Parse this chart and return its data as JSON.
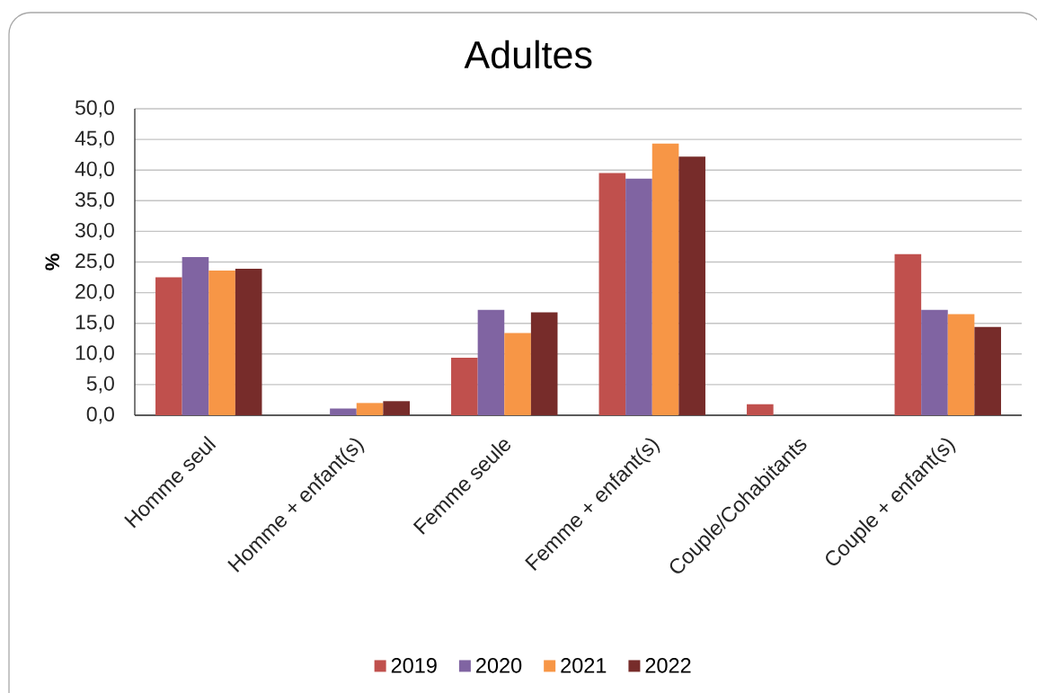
{
  "chart_data": {
    "type": "bar",
    "title": "Adultes",
    "ylabel": "%",
    "categories": [
      "Homme seul",
      "Homme + enfant(s)",
      "Femme seule",
      "Femme + enfant(s)",
      "Couple/Cohabitants",
      "Couple + enfant(s)"
    ],
    "series": [
      {
        "name": "2019",
        "color": "#c0504d",
        "values": [
          22.5,
          null,
          9.4,
          39.5,
          1.8,
          26.3
        ]
      },
      {
        "name": "2020",
        "color": "#8064a2",
        "values": [
          25.8,
          1.1,
          17.2,
          38.6,
          null,
          17.2
        ]
      },
      {
        "name": "2021",
        "color": "#f79646",
        "values": [
          23.6,
          2.0,
          13.4,
          44.3,
          null,
          16.5
        ]
      },
      {
        "name": "2022",
        "color": "#772c2a",
        "values": [
          23.9,
          2.3,
          16.8,
          42.2,
          null,
          14.4
        ]
      }
    ],
    "ylim": [
      0,
      50
    ],
    "yticks": [
      {
        "value": 0,
        "label": "0,0"
      },
      {
        "value": 5,
        "label": "5,0"
      },
      {
        "value": 10,
        "label": "10,0"
      },
      {
        "value": 15,
        "label": "15,0"
      },
      {
        "value": 20,
        "label": "20,0"
      },
      {
        "value": 25,
        "label": "25,0"
      },
      {
        "value": 30,
        "label": "30,0"
      },
      {
        "value": 35,
        "label": "35,0"
      },
      {
        "value": 40,
        "label": "40,0"
      },
      {
        "value": 45,
        "label": "45,0"
      },
      {
        "value": 50,
        "label": "50,0"
      }
    ],
    "grid": "y",
    "legend": "bottom"
  }
}
